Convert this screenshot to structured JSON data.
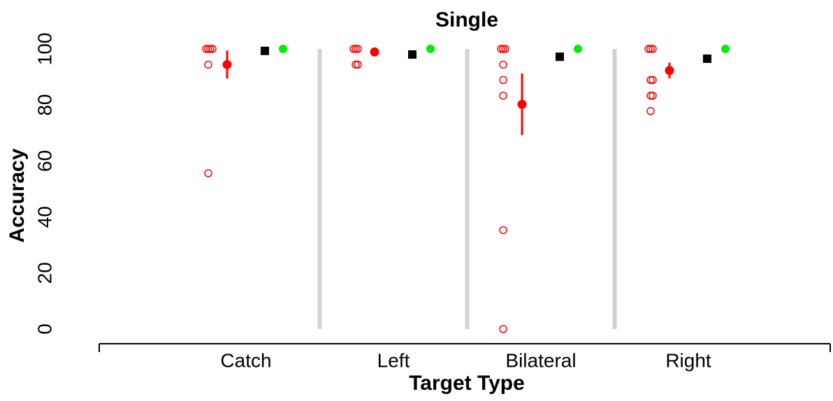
{
  "chart_data": {
    "type": "strip",
    "title": "Single",
    "xlabel": "Target Type",
    "ylabel": "Accuracy",
    "categories": [
      "Catch",
      "Left",
      "Bilateral",
      "Right"
    ],
    "ylim": [
      0,
      100
    ],
    "yticks": [
      0,
      20,
      40,
      60,
      80,
      100
    ],
    "grid": false,
    "individual": {
      "color": "#ff0000",
      "values": [
        [
          100,
          100,
          100,
          100,
          94.4,
          55.6
        ],
        [
          100,
          100,
          100,
          94.4,
          94.4
        ],
        [
          100,
          100,
          100,
          94.4,
          88.9,
          83.3,
          35.3,
          0
        ],
        [
          100,
          100,
          100,
          88.9,
          88.9,
          83.3,
          83.3,
          77.8
        ]
      ]
    },
    "mean": {
      "color": "#ff0000",
      "values": [
        94.4,
        98.9,
        80.2,
        92.3
      ],
      "errors": [
        5,
        0,
        11,
        2.8
      ]
    },
    "reference": {
      "color": "#000000",
      "values": [
        99.3,
        98,
        97.2,
        96.5
      ],
      "errors": [
        0,
        0,
        1,
        1.5
      ]
    },
    "target": {
      "color": "#00ee00",
      "values": [
        100,
        100,
        100,
        100
      ]
    }
  }
}
